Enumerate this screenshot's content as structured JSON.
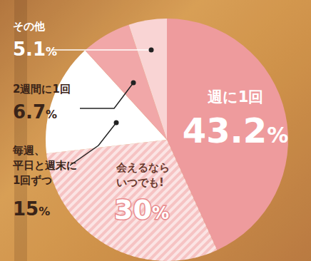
{
  "chart_data": {
    "type": "pie",
    "categories": [
      "週に1回",
      "会えるなら\nいつでも!",
      "毎週、\n平日と週末に\n1回ずつ",
      "2週間に1回",
      "その他"
    ],
    "values": [
      43.2,
      30,
      15,
      6.7,
      5.1
    ],
    "value_labels": [
      "43.2%",
      "30%",
      "15%",
      "6.7%",
      "5.1%"
    ],
    "colors": [
      "#ee9b9d",
      "#f6c3c3",
      "#ffffff",
      "#f1a7a8",
      "#f9d4d4"
    ],
    "data_labels": true
  }
}
